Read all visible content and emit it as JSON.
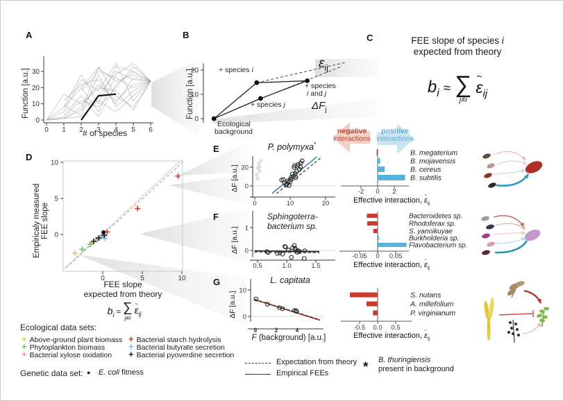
{
  "ui": {
    "panel_labels": {
      "A": "A",
      "B": "B",
      "C": "C",
      "D": "D",
      "E": "E",
      "F": "F",
      "G": "G"
    },
    "a": {
      "ylabel": "Function [a.u.]",
      "xlabel": "# of species"
    },
    "b": {
      "ylabel": "Function [a.u.]",
      "sp_i": {
        "pre": "+ species ",
        "v": "i"
      },
      "sp_j": {
        "pre": "+ species ",
        "v": "j"
      },
      "sp_ij": {
        "pre": "+ species",
        "v1": "i",
        "mid": " and ",
        "v2": "j"
      },
      "bg1": "Ecological",
      "bg2": "background",
      "eps": "ε",
      "eps_sub": "ij",
      "df": "ΔF",
      "df_sub": "j"
    },
    "c": {
      "title1_pre": "FEE slope of species ",
      "title1_var": "i",
      "title2": "expected from theory",
      "neg1": "negative",
      "neg2": "interactions",
      "pos1": "positive",
      "pos2": "interactions"
    },
    "eq": {
      "b": "b",
      "b_sub": "i",
      "rel": "≈",
      "sigma": "∑",
      "cond": "j≠i",
      "tilde": "~",
      "eps": "ε",
      "eps_sub": "ij"
    },
    "d": {
      "ylabel1": "Empiricaly measured",
      "ylabel2": "FEE slope",
      "xlabel1": "FEE slope",
      "xlabel2": "expected from theory"
    },
    "e": {
      "title": "P. polymyxa",
      "star": "*",
      "ylabel": "ΔF [a.u.]"
    },
    "f": {
      "title1": "Sphingoterra-",
      "title2": "bacterium sp.",
      "ylabel": "ΔF [a.u.]"
    },
    "g": {
      "title": "L. capitata",
      "ylabel": "ΔF [a.u.]",
      "xlabel_var": "F",
      "xlabel_rest": " (background) [a.u.]"
    },
    "eff": {
      "prefix": "Effective interaction, ",
      "tilde": "~",
      "eps": "ε",
      "sub": "ij"
    },
    "legend_eco": {
      "title": "Ecological data sets:",
      "marker": "+",
      "items": [
        {
          "label": "Above-ground plant biomass",
          "color": "#d8cf5a"
        },
        {
          "label": "Phytoplankton biomass",
          "color": "#72bd72"
        },
        {
          "label": "Bacterial xylose oxidation",
          "color": "#cf9fc0"
        },
        {
          "label": "Bacterial starch hydrolysis",
          "color": "#cd3a2c"
        },
        {
          "label": "Bacterial butyrate secretion",
          "color": "#7fc2e4"
        },
        {
          "label": "Bacterial pyoverdine secretion",
          "color": "#222222"
        }
      ]
    },
    "legend_genetic": {
      "title": "Genetic data set:",
      "marker": "●",
      "name": "E. coli",
      "rest": " fitness"
    },
    "legend_lines": {
      "dashed": "Expectation from theory",
      "solid": "Empirical FEEs"
    },
    "note": {
      "star": "*",
      "line1": "B. thuringiensis",
      "line2": "present in background"
    }
  },
  "colors": {
    "bar_red": "#cd3a2c",
    "bar_blue": "#58b1d8",
    "line_blue": "#3d8fb3",
    "line_red": "#a83228",
    "teal_arrow": "#2d96b3",
    "neg_text": "#c23b2b",
    "pos_text": "#56aed2"
  },
  "chart_data": [
    {
      "panel": "A",
      "type": "line",
      "xlabel": "# of species",
      "ylabel": "Function [a.u.]",
      "xticks": [
        0,
        1,
        2,
        3,
        4,
        5,
        6
      ],
      "yticks": [
        0,
        10,
        20,
        30
      ],
      "xlim": [
        0,
        6
      ],
      "ylim": [
        0,
        38
      ],
      "highlight_path": [
        [
          2,
          0
        ],
        [
          3,
          15
        ],
        [
          4,
          16
        ]
      ],
      "network": [
        [
          [
            0,
            0
          ],
          [
            1,
            8
          ],
          [
            2,
            20
          ],
          [
            3,
            32
          ],
          [
            4,
            24
          ],
          [
            5,
            28
          ],
          [
            6,
            24
          ]
        ],
        [
          [
            0,
            0
          ],
          [
            1,
            1
          ],
          [
            2,
            6
          ],
          [
            3,
            15
          ],
          [
            4,
            30
          ],
          [
            5,
            25
          ],
          [
            6,
            24
          ]
        ],
        [
          [
            1,
            8
          ],
          [
            2,
            28
          ],
          [
            3,
            10
          ],
          [
            4,
            33
          ],
          [
            5,
            30
          ],
          [
            6,
            24
          ]
        ],
        [
          [
            0,
            0
          ],
          [
            1,
            2
          ],
          [
            2,
            12
          ],
          [
            3,
            8
          ],
          [
            4,
            20
          ],
          [
            5,
            33
          ],
          [
            6,
            24
          ]
        ],
        [
          [
            1,
            1
          ],
          [
            2,
            8
          ],
          [
            3,
            22
          ],
          [
            4,
            12
          ],
          [
            5,
            22
          ],
          [
            6,
            24
          ]
        ],
        [
          [
            2,
            20
          ],
          [
            3,
            5
          ],
          [
            4,
            28
          ],
          [
            5,
            35
          ],
          [
            6,
            24
          ]
        ],
        [
          [
            1,
            9
          ],
          [
            2,
            3
          ],
          [
            3,
            28
          ],
          [
            4,
            8
          ],
          [
            5,
            18
          ],
          [
            6,
            24
          ]
        ],
        [
          [
            0,
            0
          ],
          [
            1,
            5
          ],
          [
            2,
            25
          ],
          [
            3,
            18
          ],
          [
            4,
            35
          ],
          [
            5,
            12
          ],
          [
            6,
            24
          ]
        ],
        [
          [
            2,
            6
          ],
          [
            3,
            33
          ],
          [
            4,
            15
          ],
          [
            5,
            8
          ],
          [
            6,
            24
          ]
        ],
        [
          [
            1,
            3
          ],
          [
            2,
            15
          ],
          [
            3,
            2
          ],
          [
            4,
            22
          ],
          [
            5,
            30
          ],
          [
            6,
            24
          ]
        ],
        [
          [
            0,
            0
          ],
          [
            2,
            2
          ],
          [
            3,
            12
          ],
          [
            4,
            5
          ],
          [
            5,
            15
          ],
          [
            6,
            24
          ]
        ],
        [
          [
            1,
            12
          ],
          [
            2,
            22
          ],
          [
            3,
            25
          ],
          [
            4,
            10
          ],
          [
            5,
            26
          ],
          [
            6,
            24
          ]
        ],
        [
          [
            0,
            0
          ],
          [
            1,
            16
          ],
          [
            2,
            10
          ],
          [
            3,
            20
          ],
          [
            4,
            18
          ],
          [
            5,
            6
          ],
          [
            6,
            24
          ]
        ],
        [
          [
            2,
            18
          ],
          [
            3,
            30
          ],
          [
            4,
            26
          ],
          [
            5,
            20
          ],
          [
            6,
            24
          ]
        ]
      ]
    },
    {
      "panel": "B",
      "type": "diagram",
      "ylabel": "Function [a.u.]",
      "yticks": [
        0,
        10,
        20
      ],
      "points": {
        "background": [
          0.4,
          0
        ],
        "species_i": [
          2.6,
          14.8
        ],
        "species_j": [
          2.8,
          8.3
        ],
        "species_i_and_j": [
          5.2,
          15.6
        ]
      },
      "dashed_lines": [
        [
          [
            2.6,
            14.8
          ],
          [
            7.2,
            23.2
          ]
        ],
        [
          [
            2.8,
            8.3
          ],
          [
            7.0,
            21.6
          ]
        ]
      ]
    },
    {
      "panel": "D",
      "type": "scatter",
      "marker": "plus",
      "xticks": [
        0,
        5,
        10
      ],
      "yticks": [
        0,
        5,
        10
      ],
      "xlim": [
        -5,
        10.5
      ],
      "ylim": [
        -5.1,
        10.2
      ],
      "series": [
        {
          "name": "Above-ground plant biomass",
          "color": "#d8cf5a",
          "points": [
            [
              -3.5,
              -2.6
            ],
            [
              -1.35,
              -1.2
            ]
          ]
        },
        {
          "name": "Phytoplankton biomass",
          "color": "#72bd72",
          "points": [
            [
              -2.6,
              -2.05
            ],
            [
              -1.6,
              -1.35
            ],
            [
              -0.7,
              -0.7
            ]
          ]
        },
        {
          "name": "Bacterial xylose oxidation",
          "color": "#cf9fc0",
          "points": [
            [
              -0.9,
              -0.75
            ],
            [
              -0.45,
              -0.4
            ],
            [
              0.05,
              -0.15
            ]
          ]
        },
        {
          "name": "Bacterial starch hydrolysis",
          "color": "#cd3a2c",
          "points": [
            [
              9.5,
              8.1
            ],
            [
              4.4,
              3.6
            ],
            [
              0.55,
              0.35
            ]
          ]
        },
        {
          "name": "Bacterial butyrate secretion",
          "color": "#7fc2e4",
          "points": [
            [
              0.3,
              -0.55
            ],
            [
              -0.15,
              -0.3
            ]
          ]
        },
        {
          "name": "Bacterial pyoverdine secretion",
          "color": "#222222",
          "points": [
            [
              -1.15,
              -0.95
            ],
            [
              -0.5,
              -0.5
            ],
            [
              0.2,
              -0.1
            ]
          ]
        },
        {
          "name": "E. coli fitness",
          "color": "#111111",
          "marker": "dot",
          "points": [
            [
              0.1,
              0.3
            ]
          ]
        }
      ]
    },
    {
      "panel": "E",
      "type": "scatter",
      "title": "P. polymyxa*",
      "ylabel": "ΔF [a.u.]",
      "xticks": [
        0,
        10,
        20
      ],
      "yticks": [
        0,
        20
      ],
      "xlim": [
        -0.5,
        22
      ],
      "ylim": [
        -9,
        32
      ],
      "points": [
        [
          7.6,
          6.3
        ],
        [
          8.1,
          6.8
        ],
        [
          8.4,
          3.1
        ],
        [
          8.9,
          0.8
        ],
        [
          9.1,
          2.2
        ],
        [
          9.4,
          5.4
        ],
        [
          9.7,
          0.5
        ],
        [
          9.9,
          4.1
        ],
        [
          10.1,
          7.2
        ],
        [
          10.3,
          9.3
        ],
        [
          10.6,
          12.8
        ],
        [
          10.9,
          10.2
        ],
        [
          11.1,
          19.8
        ],
        [
          11.3,
          21.7
        ],
        [
          11.5,
          13.2
        ],
        [
          11.6,
          9.0
        ],
        [
          11.8,
          15.5
        ],
        [
          12.0,
          21.2
        ],
        [
          12.3,
          23.0
        ],
        [
          12.6,
          17.8
        ],
        [
          12.9,
          20.3
        ],
        [
          13.0,
          24.6
        ],
        [
          13.4,
          26.8
        ]
      ],
      "faded_points": [
        [
          0.6,
          12
        ],
        [
          0.9,
          19
        ],
        [
          1.1,
          24
        ],
        [
          1.4,
          16
        ],
        [
          1.7,
          27
        ],
        [
          0.8,
          8
        ],
        [
          1.3,
          21
        ]
      ],
      "fit_solid": {
        "color": "#3d8fb3",
        "x1": 4.9,
        "y1": -8,
        "x2": 17.5,
        "y2": 31
      },
      "fit_dashed": {
        "x1": 6.2,
        "y1": -8,
        "x2": 19.0,
        "y2": 31
      }
    },
    {
      "panel": "E-bars",
      "type": "bar",
      "orientation": "horizontal",
      "xlabel": "Effective interaction, ε̃ij",
      "ticks": [
        -2,
        0,
        2
      ],
      "tick_labels": [
        "-2",
        "0",
        "2"
      ],
      "bars": [
        {
          "label": "B. megaterium",
          "value": -0.12,
          "color": "#cd3a2c"
        },
        {
          "label": "B. mojavensis",
          "value": 0.3,
          "color": "#58b1d8"
        },
        {
          "label": "B. cereus",
          "value": 0.85,
          "color": "#58b1d8"
        },
        {
          "label": "B. subtilis",
          "value": 3.3,
          "color": "#58b1d8"
        }
      ]
    },
    {
      "panel": "F",
      "type": "scatter",
      "title": "Sphingoterra- bacterium sp.",
      "ylabel": "ΔF [a.u.]",
      "xticks": [
        0.5,
        1.0,
        1.5
      ],
      "tick_labels_x": [
        "0.5",
        "1.0",
        "1.5"
      ],
      "yticks": [
        0,
        1
      ],
      "xlim": [
        0.42,
        1.58
      ],
      "ylim": [
        -0.55,
        1.35
      ],
      "points": [
        [
          0.66,
          -0.05
        ],
        [
          0.68,
          -0.09
        ],
        [
          0.84,
          -0.13
        ],
        [
          0.88,
          -0.1
        ],
        [
          0.93,
          -0.16
        ],
        [
          0.97,
          0.17
        ],
        [
          0.98,
          0.15
        ],
        [
          1.03,
          0.02
        ],
        [
          1.08,
          -0.3
        ],
        [
          1.1,
          0.12
        ],
        [
          1.13,
          0.22
        ],
        [
          1.14,
          0.1
        ],
        [
          1.16,
          0.03
        ],
        [
          1.18,
          -0.08
        ],
        [
          1.2,
          -0.02
        ],
        [
          1.22,
          -0.05
        ],
        [
          1.3,
          -0.35
        ],
        [
          1.31,
          -0.02
        ]
      ],
      "fit_solid": {
        "color": "#222222",
        "x1": 0.45,
        "y1": -0.02,
        "x2": 1.56,
        "y2": -0.05
      },
      "fit_dashed": {
        "x1": 0.45,
        "y1": -0.07,
        "x2": 1.56,
        "y2": -0.1
      }
    },
    {
      "panel": "F-bars",
      "type": "bar",
      "orientation": "horizontal",
      "xlabel": "Effective interaction, ε̃ij",
      "ticks": [
        -0.05,
        0,
        0.05
      ],
      "tick_labels": [
        "-0.05",
        "0",
        "0.05"
      ],
      "bars": [
        {
          "label": "Bacteroidetes sp.",
          "value": -0.03,
          "color": "#cd3a2c"
        },
        {
          "label": "Rhodoferax sp.",
          "value": -0.029,
          "color": "#cd3a2c"
        },
        {
          "label": "S. yanoikuyae",
          "value": -0.012,
          "color": "#cd3a2c"
        },
        {
          "label": "Burkholderia sp.",
          "value": 0.004,
          "color": "#58b1d8"
        },
        {
          "label": "Flavobacterium sp.",
          "value": 0.08,
          "color": "#58b1d8"
        }
      ]
    },
    {
      "panel": "G",
      "type": "scatter",
      "title": "L. capitata",
      "ylabel": "ΔF [a.u.]",
      "xlabel": "F (background) [a.u.]",
      "xticks": [
        0,
        2,
        4
      ],
      "yticks": [
        0,
        10
      ],
      "xlim": [
        -0.3,
        6.3
      ],
      "ylim": [
        -3.5,
        13
      ],
      "points": [
        [
          0.05,
          6.6
        ],
        [
          1.15,
          4.6
        ],
        [
          2.3,
          3.3
        ],
        [
          2.6,
          2.9
        ],
        [
          3.75,
          2.2
        ],
        [
          3.9,
          2.1
        ],
        [
          3.95,
          1.9
        ]
      ],
      "fit_solid": {
        "color": "#a83228",
        "x1": -0.1,
        "y1": 6.35,
        "x2": 6.2,
        "y2": -1.45
      },
      "fit_dashed": {
        "x1": -0.1,
        "y1": 6.5,
        "x2": 6.2,
        "y2": -1.3
      }
    },
    {
      "panel": "G-bars",
      "type": "bar",
      "orientation": "horizontal",
      "xlabel": "Effective interaction, ε̃ij",
      "ticks": [
        -0.5,
        0,
        0.5
      ],
      "tick_labels": [
        "-0.5",
        "0.0",
        "0.5"
      ],
      "bars": [
        {
          "label": "S. nutans",
          "value": -0.77,
          "color": "#cd3a2c"
        },
        {
          "label": "A. millefolium",
          "value": -0.31,
          "color": "#cd3a2c"
        },
        {
          "label": "P. virginianum",
          "value": -0.13,
          "color": "#cd3a2c"
        }
      ]
    }
  ]
}
